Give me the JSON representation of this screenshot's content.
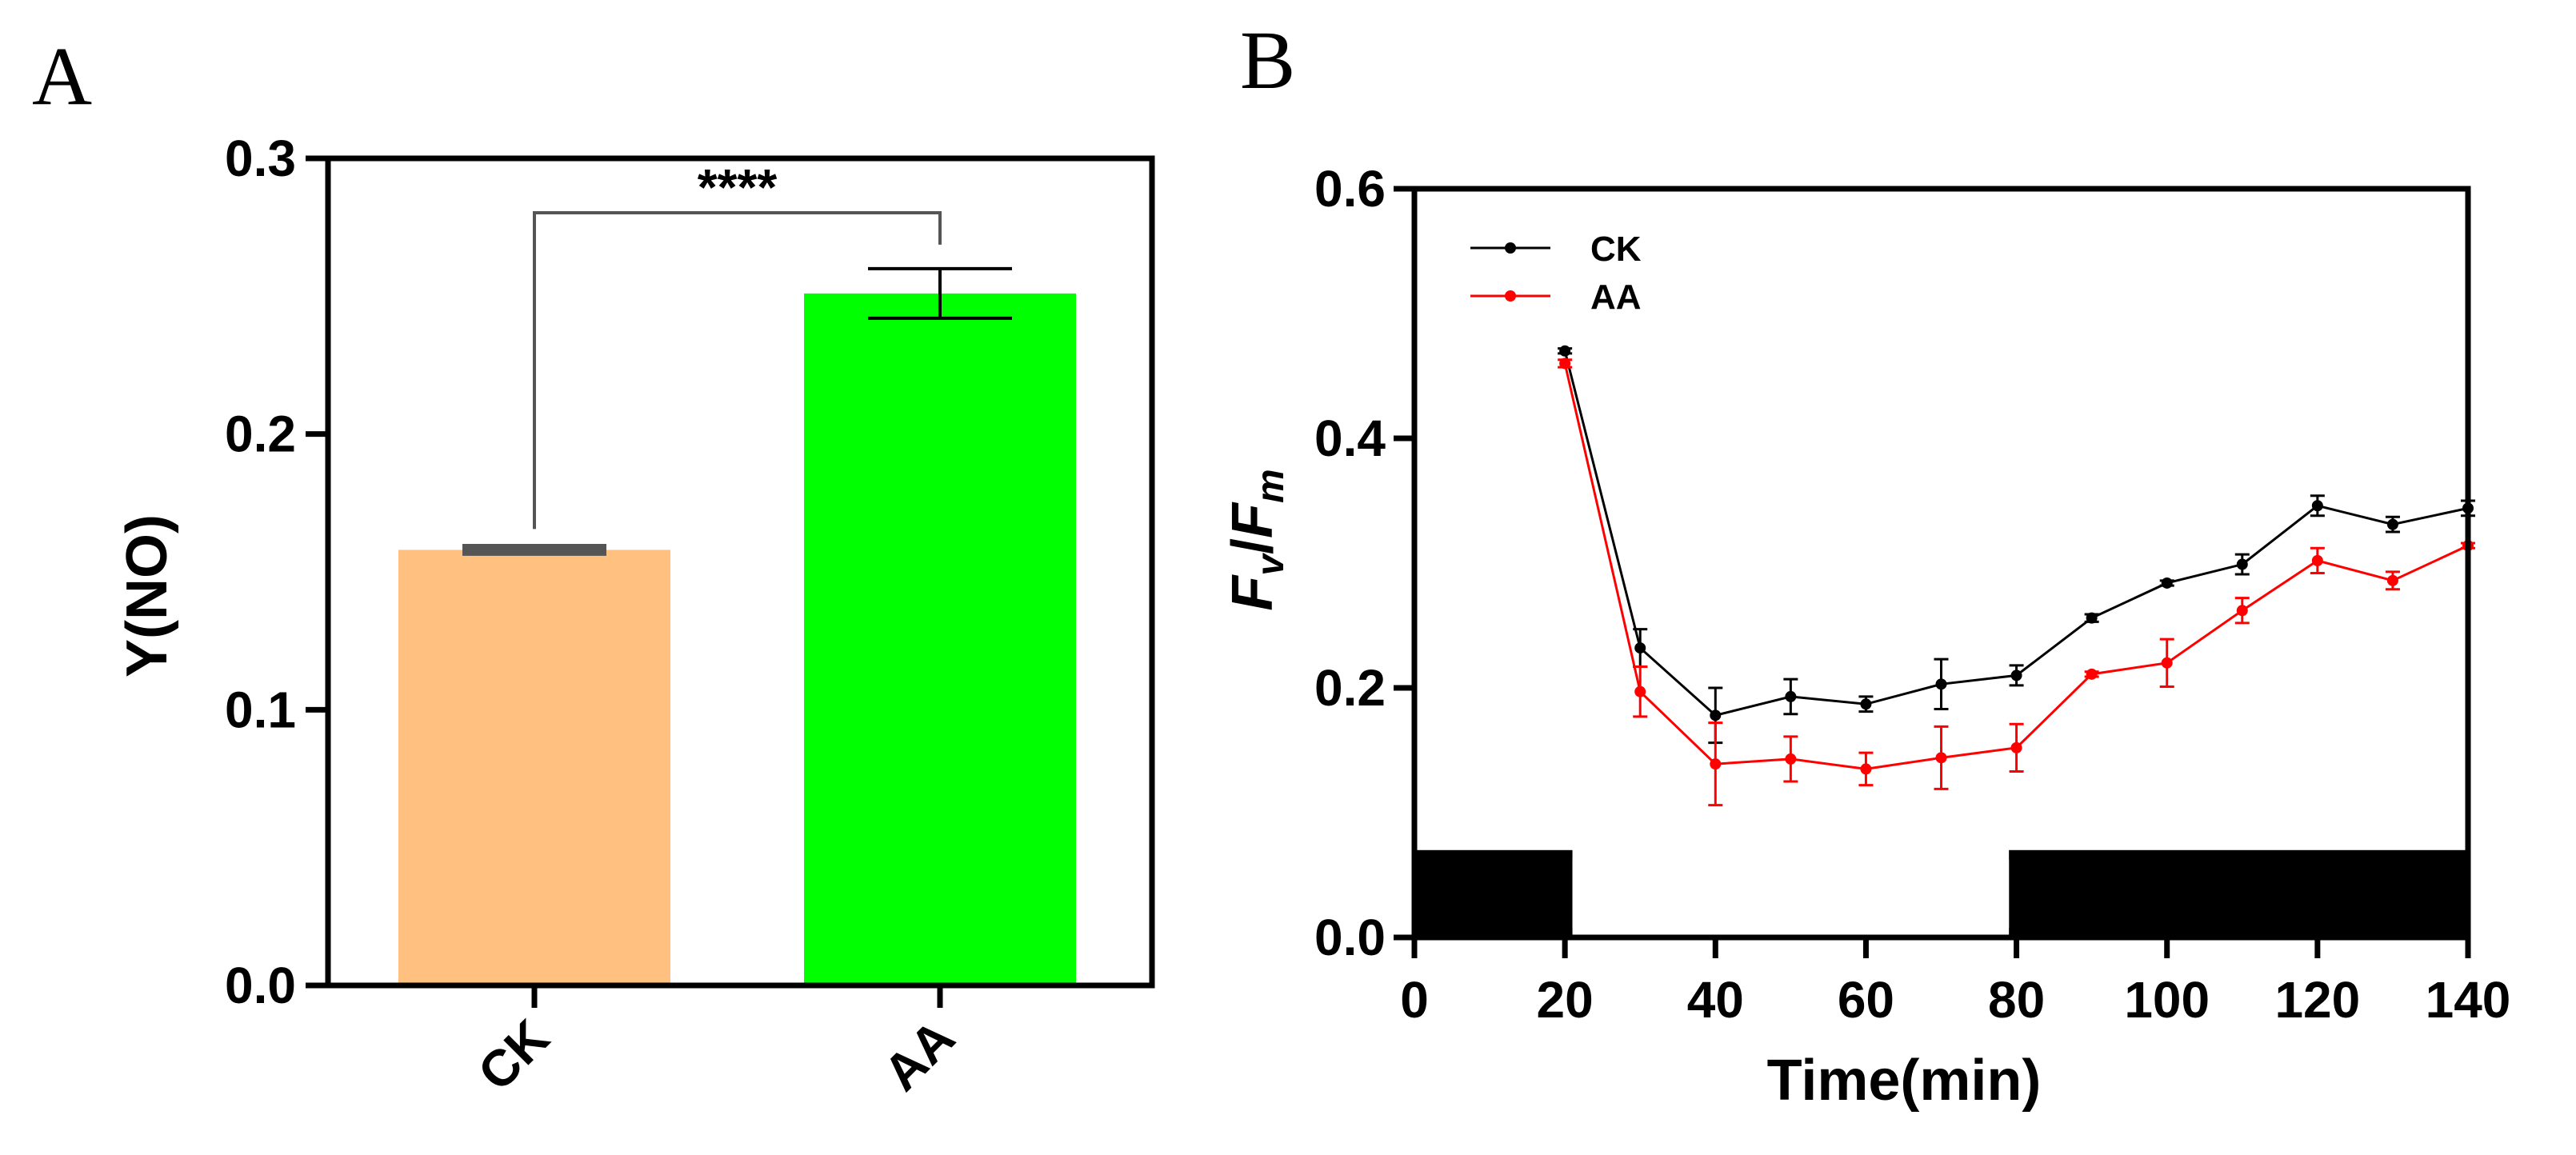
{
  "chart_data": [
    {
      "panel": "A",
      "type": "bar",
      "ylabel": "Y(NO)",
      "ylim": [
        0,
        0.3
      ],
      "yticks": [
        0.0,
        0.1,
        0.2,
        0.3
      ],
      "ytick_labels": [
        "0.0",
        "0.1",
        "0.2",
        "0.3"
      ],
      "categories": [
        "CK",
        "AA"
      ],
      "values": [
        0.158,
        0.251
      ],
      "errors": [
        0.001,
        0.009
      ],
      "colors": [
        "#FFC080",
        "#00FF00"
      ],
      "significance": "****"
    },
    {
      "panel": "B",
      "type": "line",
      "xlabel": "Time(min)",
      "ylabel_main": "F",
      "ylabel_sub1": "v",
      "ylabel_slash": "/",
      "ylabel_sub2": "m",
      "xlim": [
        0,
        140
      ],
      "ylim": [
        0,
        0.6
      ],
      "xticks": [
        0,
        20,
        40,
        60,
        80,
        100,
        120,
        140
      ],
      "xtick_labels": [
        "0",
        "20",
        "40",
        "60",
        "80",
        "100",
        "120",
        "140"
      ],
      "yticks": [
        0.0,
        0.2,
        0.4,
        0.6
      ],
      "ytick_labels": [
        "0.0",
        "0.2",
        "0.4",
        "0.6"
      ],
      "x": [
        20,
        30,
        40,
        50,
        60,
        70,
        80,
        90,
        100,
        110,
        120,
        130,
        140
      ],
      "series": [
        {
          "name": "CK",
          "color": "#000000",
          "values": [
            0.47,
            0.232,
            0.178,
            0.193,
            0.187,
            0.203,
            0.21,
            0.256,
            0.284,
            0.299,
            0.346,
            0.331,
            0.344
          ],
          "errors": [
            0.002,
            0.015,
            0.022,
            0.014,
            0.006,
            0.02,
            0.008,
            0.003,
            0.002,
            0.008,
            0.008,
            0.006,
            0.006
          ]
        },
        {
          "name": "AA",
          "color": "#FF0000",
          "values": [
            0.46,
            0.197,
            0.139,
            0.143,
            0.135,
            0.144,
            0.152,
            0.211,
            0.22,
            0.262,
            0.302,
            0.286,
            0.314
          ],
          "errors": [
            0.003,
            0.02,
            0.033,
            0.018,
            0.013,
            0.025,
            0.019,
            0.002,
            0.019,
            0.01,
            0.01,
            0.007,
            0.002
          ]
        }
      ],
      "light_regime": {
        "dark_periods_min": [
          [
            0,
            21
          ],
          [
            79,
            140
          ]
        ],
        "light_periods_min": [
          [
            21,
            79
          ]
        ],
        "bar_top_value": 0.07
      },
      "legend_position": "top-left"
    }
  ],
  "labels": {
    "panel_a": "A",
    "panel_b": "B"
  }
}
